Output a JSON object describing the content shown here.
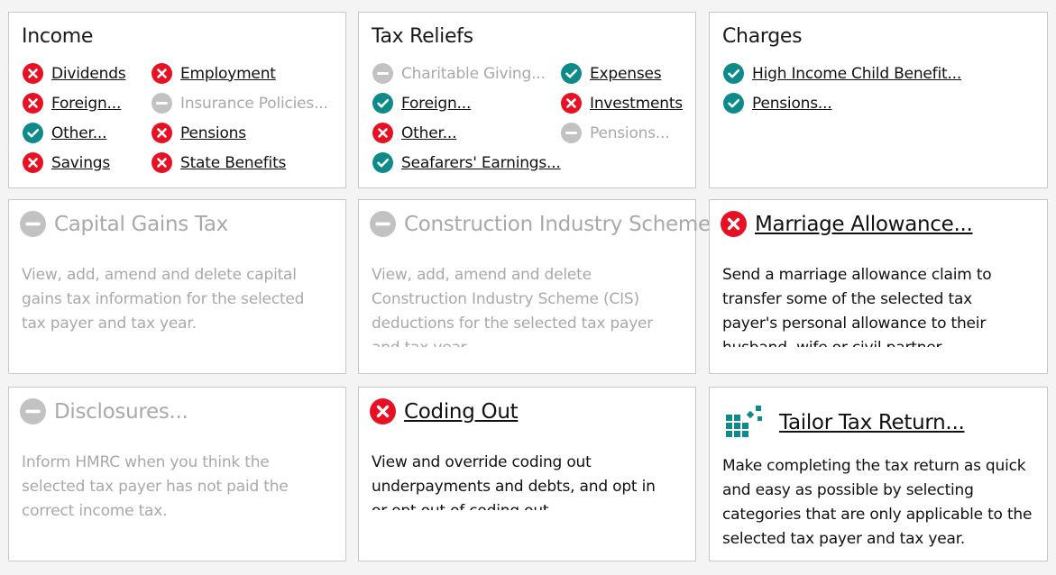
{
  "income": {
    "title": "Income",
    "items": [
      {
        "label": "Dividends",
        "status": "not-completed"
      },
      {
        "label": "Employment",
        "status": "not-completed"
      },
      {
        "label": "Foreign...",
        "status": "not-completed"
      },
      {
        "label": "Insurance Policies...",
        "status": "not-applicable"
      },
      {
        "label": "Other...",
        "status": "completed"
      },
      {
        "label": "Pensions",
        "status": "not-completed"
      },
      {
        "label": "Savings",
        "status": "not-completed"
      },
      {
        "label": "State Benefits",
        "status": "not-completed"
      }
    ]
  },
  "tax_reliefs": {
    "title": "Tax Reliefs",
    "items": [
      {
        "label": "Charitable Giving...",
        "status": "not-applicable"
      },
      {
        "label": "Expenses",
        "status": "completed"
      },
      {
        "label": "Foreign...",
        "status": "completed"
      },
      {
        "label": "Investments",
        "status": "not-completed"
      },
      {
        "label": "Other...",
        "status": "not-completed"
      },
      {
        "label": "Pensions...",
        "status": "not-applicable"
      },
      {
        "label": "Seafarers' Earnings...",
        "status": "completed"
      }
    ]
  },
  "charges": {
    "title": "Charges",
    "items": [
      {
        "label": "High Income Child Benefit...",
        "status": "completed"
      },
      {
        "label": "Pensions...",
        "status": "completed"
      }
    ]
  },
  "capital_gains": {
    "title": "Capital Gains Tax",
    "status": "not-applicable",
    "description": "View, add, amend and delete capital gains tax information for the selected tax payer and tax year."
  },
  "cis": {
    "title": "Construction Industry Scheme",
    "status": "not-applicable",
    "description": "View, add, amend and delete Construction Industry Scheme (CIS) deductions for the selected tax payer and tax year."
  },
  "marriage_allowance": {
    "title": "Marriage Allowance...",
    "status": "not-completed",
    "description": "Send a marriage allowance claim to transfer some of the selected tax payer's personal allowance to their husband, wife or civil partner."
  },
  "disclosures": {
    "title": "Disclosures...",
    "status": "not-applicable",
    "description": "Inform HMRC when you think the selected tax payer has not paid the correct income tax."
  },
  "coding_out": {
    "title": "Coding Out",
    "status": "not-completed",
    "description": "View and override coding out underpayments and debts, and opt in or opt out of coding out."
  },
  "tailor": {
    "title": "Tailor Tax Return...",
    "icon": "tailor-grid-icon",
    "description": "Make completing the tax return as quick and easy as possible by selecting categories that are only applicable to the selected tax payer and tax year."
  },
  "colors": {
    "not_completed": "#e81123",
    "completed": "#0f8a8a",
    "not_applicable": "#c2c2c2"
  }
}
